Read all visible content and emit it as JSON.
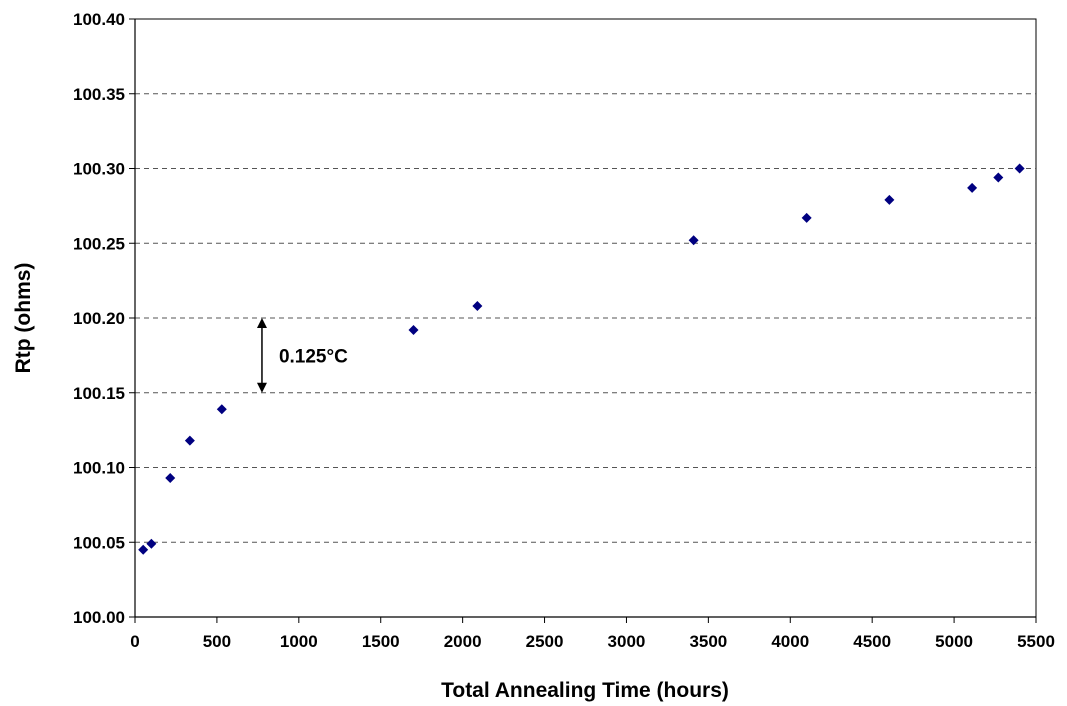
{
  "chart_data": {
    "type": "scatter",
    "title": "",
    "xlabel": "Total Annealing Time (hours)",
    "ylabel": "Rtp (ohms)",
    "xlim": [
      0,
      5500
    ],
    "ylim": [
      100.0,
      100.4
    ],
    "x_ticks": [
      "0",
      "500",
      "1000",
      "1500",
      "2000",
      "2500",
      "3000",
      "3500",
      "4000",
      "4500",
      "5000",
      "5500"
    ],
    "y_ticks": [
      "100.00",
      "100.05",
      "100.10",
      "100.15",
      "100.20",
      "100.25",
      "100.30",
      "100.35",
      "100.40"
    ],
    "grid": "horizontal dashed",
    "marker_color": "#000080",
    "series": [
      {
        "points": [
          {
            "x": 50,
            "y": 100.045
          },
          {
            "x": 100,
            "y": 100.049
          },
          {
            "x": 215,
            "y": 100.093
          },
          {
            "x": 335,
            "y": 100.118
          },
          {
            "x": 530,
            "y": 100.139
          },
          {
            "x": 1700,
            "y": 100.192
          },
          {
            "x": 2090,
            "y": 100.208
          },
          {
            "x": 3410,
            "y": 100.252
          },
          {
            "x": 4100,
            "y": 100.267
          },
          {
            "x": 4605,
            "y": 100.279
          },
          {
            "x": 5110,
            "y": 100.287
          },
          {
            "x": 5270,
            "y": 100.294
          },
          {
            "x": 5400,
            "y": 100.3
          }
        ]
      }
    ],
    "annotation": {
      "text": "0.125°C",
      "x": 775,
      "y_from": 100.15,
      "y_to": 100.2
    }
  }
}
